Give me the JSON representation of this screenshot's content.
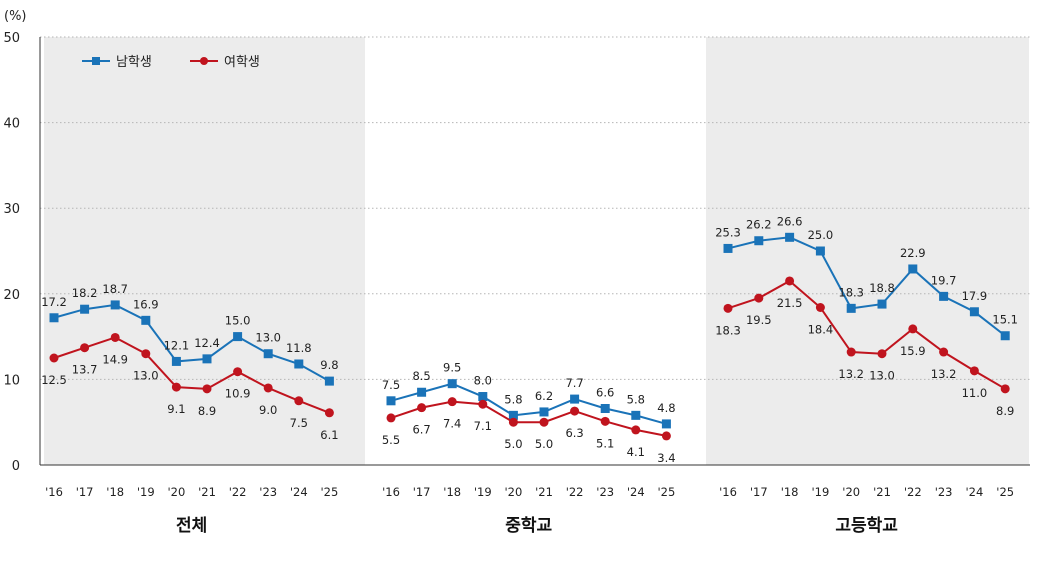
{
  "chart_data": {
    "type": "line",
    "y_unit": "(%)",
    "ylim": [
      0,
      50
    ],
    "y_ticks": [
      "0",
      "10",
      "20",
      "30",
      "40",
      "50"
    ],
    "grid": true,
    "legend": {
      "placement": "top-left",
      "entries": [
        "남학생",
        "여학생"
      ]
    },
    "colors": {
      "male": "#1a73b8",
      "female": "#c0141e",
      "panel_shade": "#ececec"
    },
    "x": [
      "'16",
      "'17",
      "'18",
      "'19",
      "'20",
      "'21",
      "'22",
      "'23",
      "'24",
      "'25"
    ],
    "panels": [
      {
        "title": "전체",
        "shaded": true,
        "series": [
          {
            "name": "남학생",
            "values": [
              17.2,
              18.2,
              18.7,
              16.9,
              12.1,
              12.4,
              15.0,
              13.0,
              11.8,
              9.8
            ]
          },
          {
            "name": "여학생",
            "values": [
              12.5,
              13.7,
              14.9,
              13.0,
              9.1,
              8.9,
              10.9,
              9.0,
              7.5,
              6.1
            ]
          }
        ]
      },
      {
        "title": "중학교",
        "shaded": false,
        "series": [
          {
            "name": "남학생",
            "values": [
              7.5,
              8.5,
              9.5,
              8.0,
              5.8,
              6.2,
              7.7,
              6.6,
              5.8,
              4.8
            ]
          },
          {
            "name": "여학생",
            "values": [
              5.5,
              6.7,
              7.4,
              7.1,
              5.0,
              5.0,
              6.3,
              5.1,
              4.1,
              3.4
            ]
          }
        ]
      },
      {
        "title": "고등학교",
        "shaded": true,
        "series": [
          {
            "name": "남학생",
            "values": [
              25.3,
              26.2,
              26.6,
              25.0,
              18.3,
              18.8,
              22.9,
              19.7,
              17.9,
              15.1
            ]
          },
          {
            "name": "여학생",
            "values": [
              18.3,
              19.5,
              21.5,
              18.4,
              13.2,
              13.0,
              15.9,
              13.2,
              11.0,
              8.9
            ]
          }
        ]
      }
    ]
  }
}
